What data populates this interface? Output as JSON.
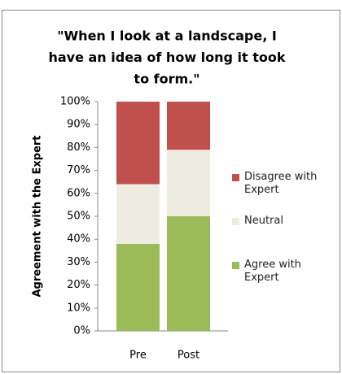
{
  "chart_data": {
    "type": "stacked_bar",
    "title": [
      "\"When I look at a landscape, I",
      "have an idea of how long it took",
      "to form.\""
    ],
    "y_label": "Agreement with the Expert",
    "categories": [
      "Pre",
      "Post"
    ],
    "series": [
      {
        "name": "Agree with Expert",
        "color": "#9bbb59",
        "values": [
          38,
          50
        ]
      },
      {
        "name": "Neutral",
        "color": "#eeece1",
        "values": [
          26,
          29
        ]
      },
      {
        "name": "Disagree with Expert",
        "color": "#c0504d",
        "values": [
          36,
          21
        ]
      }
    ],
    "ylim": [
      0,
      100
    ],
    "yticks": [
      {
        "value": 0,
        "label": "0%"
      },
      {
        "value": 10,
        "label": "10%"
      },
      {
        "value": 20,
        "label": "20%"
      },
      {
        "value": 30,
        "label": "30%"
      },
      {
        "value": 40,
        "label": "40%"
      },
      {
        "value": 50,
        "label": "50%"
      },
      {
        "value": 60,
        "label": "60%"
      },
      {
        "value": 70,
        "label": "70%"
      },
      {
        "value": 80,
        "label": "80%"
      },
      {
        "value": 90,
        "label": "90%"
      },
      {
        "value": 100,
        "label": "100%"
      }
    ],
    "legend": "right"
  }
}
